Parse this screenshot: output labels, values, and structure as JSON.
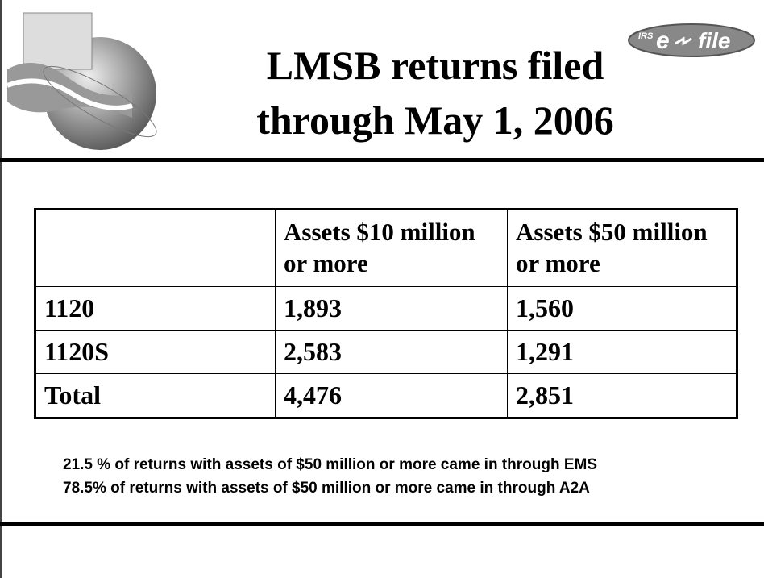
{
  "logo": {
    "prefix": "IRS",
    "letter": "e",
    "word": "file"
  },
  "header": {
    "title_line1": "LMSB returns filed",
    "title_line2": "through May 1, 2006"
  },
  "table": {
    "columns": [
      "",
      "Assets $10 million or more",
      "Assets $50 million or more"
    ],
    "rows": [
      [
        "1120",
        "1,893",
        "1,560"
      ],
      [
        "1120S",
        "2,583",
        "1,291"
      ],
      [
        "Total",
        "4,476",
        "2,851"
      ]
    ]
  },
  "notes": [
    "21.5 % of returns with assets of $50 million or more came in through EMS",
    "78.5% of returns with assets of $50 million or more came in through A2A"
  ]
}
